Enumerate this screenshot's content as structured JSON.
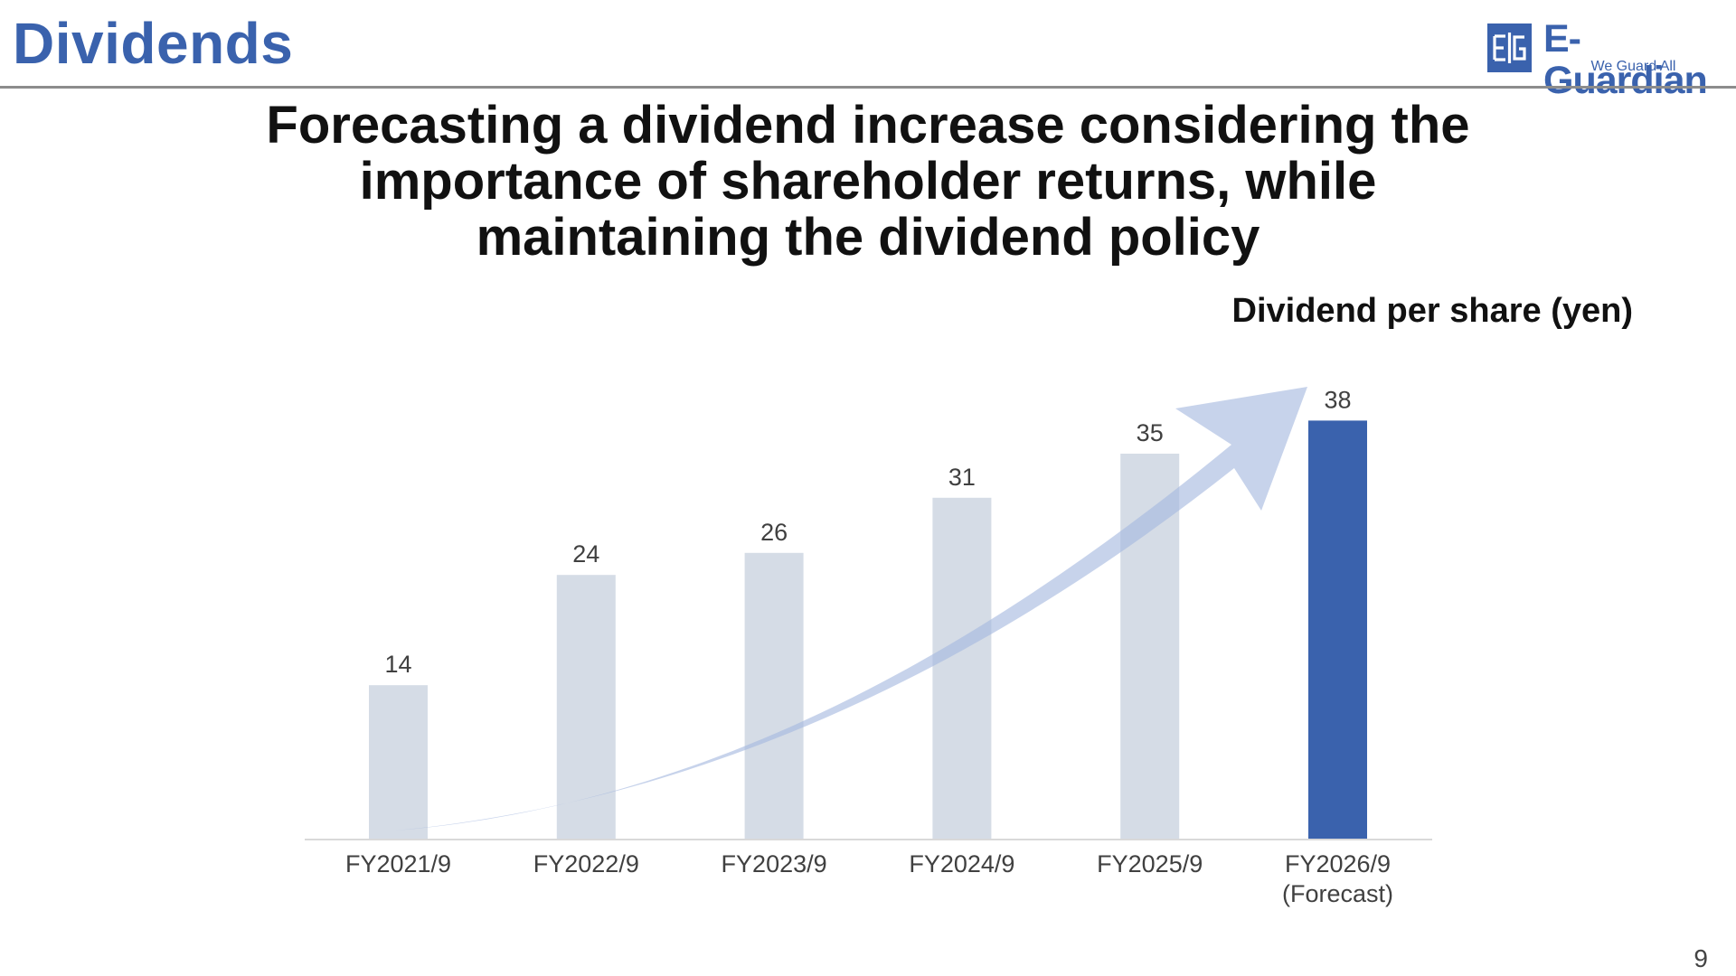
{
  "slide": {
    "title": "Dividends",
    "headline": [
      "Forecasting a dividend increase considering the",
      "importance of shareholder returns, while",
      "maintaining the dividend policy"
    ],
    "page_number": "9"
  },
  "logo": {
    "mark": "E|G",
    "wordmark": "E-Guardian",
    "tagline": "We Guard All"
  },
  "colors": {
    "brand": "#3a62ad",
    "bar_past": "#d5dce6",
    "bar_forecast": "#3a62ad",
    "trend_arrow": "#a5b8de",
    "axis": "#d9d9d9",
    "label_text": "#404040"
  },
  "chart_data": {
    "type": "bar",
    "title": "Dividend per share (yen)",
    "categories": [
      "FY2021/9",
      "FY2022/9",
      "FY2023/9",
      "FY2024/9",
      "FY2025/9",
      "FY2026/9"
    ],
    "category_sublabels": [
      "",
      "",
      "",
      "",
      "",
      "(Forecast)"
    ],
    "values": [
      14,
      24,
      26,
      31,
      35,
      38
    ],
    "data_labels": [
      "14",
      "24",
      "26",
      "31",
      "35",
      "38"
    ],
    "highlighted": [
      false,
      false,
      false,
      false,
      false,
      true
    ],
    "ylim": [
      0,
      40
    ],
    "grid": false,
    "legend": "none",
    "annotation": "upward trend arrow"
  }
}
